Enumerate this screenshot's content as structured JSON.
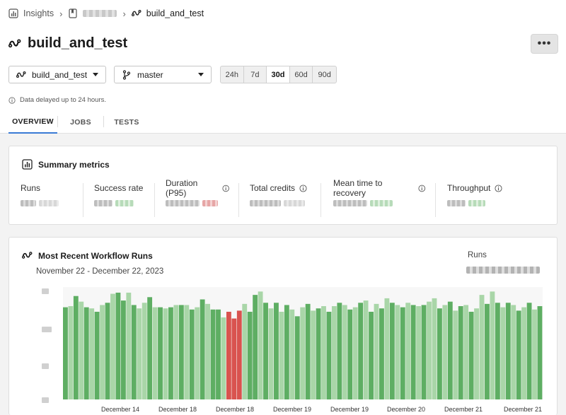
{
  "breadcrumb": {
    "insights_label": "Insights",
    "project_label": "",
    "workflow_label": "build_and_test"
  },
  "page": {
    "title": "build_and_test",
    "more_label": "•••"
  },
  "filters": {
    "workflow_value": "build_and_test",
    "branch_value": "master",
    "ranges": [
      {
        "label": "24h",
        "active": false
      },
      {
        "label": "7d",
        "active": false
      },
      {
        "label": "30d",
        "active": true
      },
      {
        "label": "60d",
        "active": false
      },
      {
        "label": "90d",
        "active": false
      }
    ],
    "delay_note": "Data delayed up to 24 hours."
  },
  "tabs": [
    {
      "label": "OVERVIEW",
      "active": true
    },
    {
      "label": "JOBS",
      "active": false
    },
    {
      "label": "TESTS",
      "active": false
    }
  ],
  "summary": {
    "title": "Summary metrics",
    "metrics": [
      {
        "label": "Runs",
        "info": false
      },
      {
        "label": "Success rate",
        "info": false
      },
      {
        "label": "Duration (P95)",
        "info": true
      },
      {
        "label": "Total credits",
        "info": true
      },
      {
        "label": "Mean time to recovery",
        "info": true
      },
      {
        "label": "Throughput",
        "info": true
      }
    ]
  },
  "recent_runs": {
    "title": "Most Recent Workflow Runs",
    "date_range": "November 22 - December 22, 2023",
    "runs_label": "Runs"
  },
  "colors": {
    "success_dark": "#5eae63",
    "success_light": "#a9d6a8",
    "failed": "#d9534f",
    "accent_tab": "#3a7bd5"
  },
  "chart_data": {
    "type": "bar",
    "x_tick_labels": [
      "December 14",
      "December 18",
      "December 18",
      "December 19",
      "December 19",
      "December 20",
      "December 21",
      "December 21"
    ],
    "y_range": [
      0,
      1
    ],
    "grid": false,
    "legend": "none",
    "bars": [
      {
        "v": 0.82,
        "s": "success"
      },
      {
        "v": 0.83,
        "s": "success_light"
      },
      {
        "v": 0.92,
        "s": "success"
      },
      {
        "v": 0.87,
        "s": "success_light"
      },
      {
        "v": 0.82,
        "s": "success"
      },
      {
        "v": 0.81,
        "s": "success_light"
      },
      {
        "v": 0.78,
        "s": "success"
      },
      {
        "v": 0.84,
        "s": "success_light"
      },
      {
        "v": 0.86,
        "s": "success"
      },
      {
        "v": 0.94,
        "s": "success_light"
      },
      {
        "v": 0.95,
        "s": "success"
      },
      {
        "v": 0.88,
        "s": "success"
      },
      {
        "v": 0.95,
        "s": "success_light"
      },
      {
        "v": 0.84,
        "s": "success"
      },
      {
        "v": 0.81,
        "s": "success_light"
      },
      {
        "v": 0.86,
        "s": "success_light"
      },
      {
        "v": 0.91,
        "s": "success"
      },
      {
        "v": 0.82,
        "s": "success_light"
      },
      {
        "v": 0.82,
        "s": "success"
      },
      {
        "v": 0.81,
        "s": "success_light"
      },
      {
        "v": 0.82,
        "s": "success"
      },
      {
        "v": 0.84,
        "s": "success_light"
      },
      {
        "v": 0.84,
        "s": "success"
      },
      {
        "v": 0.84,
        "s": "success_light"
      },
      {
        "v": 0.8,
        "s": "success"
      },
      {
        "v": 0.82,
        "s": "success_light"
      },
      {
        "v": 0.89,
        "s": "success"
      },
      {
        "v": 0.85,
        "s": "success_light"
      },
      {
        "v": 0.8,
        "s": "success"
      },
      {
        "v": 0.8,
        "s": "success"
      },
      {
        "v": 0.73,
        "s": "success_light"
      },
      {
        "v": 0.78,
        "s": "failed"
      },
      {
        "v": 0.72,
        "s": "failed"
      },
      {
        "v": 0.79,
        "s": "failed"
      },
      {
        "v": 0.85,
        "s": "success_light"
      },
      {
        "v": 0.78,
        "s": "success"
      },
      {
        "v": 0.93,
        "s": "success"
      },
      {
        "v": 0.96,
        "s": "success_light"
      },
      {
        "v": 0.86,
        "s": "success"
      },
      {
        "v": 0.81,
        "s": "success_light"
      },
      {
        "v": 0.86,
        "s": "success"
      },
      {
        "v": 0.78,
        "s": "success_light"
      },
      {
        "v": 0.84,
        "s": "success"
      },
      {
        "v": 0.8,
        "s": "success_light"
      },
      {
        "v": 0.74,
        "s": "success"
      },
      {
        "v": 0.82,
        "s": "success_light"
      },
      {
        "v": 0.85,
        "s": "success"
      },
      {
        "v": 0.79,
        "s": "success_light"
      },
      {
        "v": 0.81,
        "s": "success"
      },
      {
        "v": 0.83,
        "s": "success_light"
      },
      {
        "v": 0.78,
        "s": "success"
      },
      {
        "v": 0.83,
        "s": "success_light"
      },
      {
        "v": 0.86,
        "s": "success"
      },
      {
        "v": 0.84,
        "s": "success_light"
      },
      {
        "v": 0.8,
        "s": "success"
      },
      {
        "v": 0.82,
        "s": "success_light"
      },
      {
        "v": 0.86,
        "s": "success"
      },
      {
        "v": 0.88,
        "s": "success_light"
      },
      {
        "v": 0.78,
        "s": "success"
      },
      {
        "v": 0.85,
        "s": "success_light"
      },
      {
        "v": 0.81,
        "s": "success"
      },
      {
        "v": 0.9,
        "s": "success_light"
      },
      {
        "v": 0.86,
        "s": "success"
      },
      {
        "v": 0.84,
        "s": "success_light"
      },
      {
        "v": 0.82,
        "s": "success"
      },
      {
        "v": 0.86,
        "s": "success_light"
      },
      {
        "v": 0.84,
        "s": "success"
      },
      {
        "v": 0.83,
        "s": "success_light"
      },
      {
        "v": 0.84,
        "s": "success"
      },
      {
        "v": 0.87,
        "s": "success_light"
      },
      {
        "v": 0.9,
        "s": "success_light"
      },
      {
        "v": 0.81,
        "s": "success"
      },
      {
        "v": 0.84,
        "s": "success_light"
      },
      {
        "v": 0.87,
        "s": "success"
      },
      {
        "v": 0.79,
        "s": "success_light"
      },
      {
        "v": 0.83,
        "s": "success"
      },
      {
        "v": 0.84,
        "s": "success_light"
      },
      {
        "v": 0.78,
        "s": "success"
      },
      {
        "v": 0.81,
        "s": "success_light"
      },
      {
        "v": 0.93,
        "s": "success_light"
      },
      {
        "v": 0.85,
        "s": "success"
      },
      {
        "v": 0.96,
        "s": "success_light"
      },
      {
        "v": 0.86,
        "s": "success"
      },
      {
        "v": 0.82,
        "s": "success_light"
      },
      {
        "v": 0.86,
        "s": "success"
      },
      {
        "v": 0.84,
        "s": "success_light"
      },
      {
        "v": 0.79,
        "s": "success"
      },
      {
        "v": 0.82,
        "s": "success_light"
      },
      {
        "v": 0.86,
        "s": "success"
      },
      {
        "v": 0.8,
        "s": "success_light"
      },
      {
        "v": 0.83,
        "s": "success"
      }
    ]
  }
}
